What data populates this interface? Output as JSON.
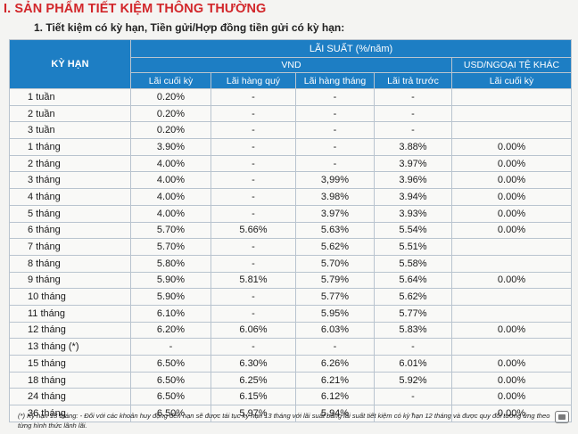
{
  "section_title": "I.  SẢN PHẨM TIẾT KIỆM THÔNG THƯỜNG",
  "sub_title": "1. Tiết kiệm có kỳ hạn, Tiền gửi/Hợp đồng tiền gửi có kỳ hạn:",
  "header": {
    "term": "KỲ HẠN",
    "interest_rate": "LÃI SUẤT (%/năm)",
    "vnd": "VND",
    "usd": "USD/NGOẠI TỆ KHÁC",
    "columns": [
      "Lãi cuối kỳ",
      "Lãi hàng quý",
      "Lãi hàng tháng",
      "Lãi trả trước",
      "Lãi cuối kỳ"
    ]
  },
  "rows": [
    [
      "1 tuần",
      "0.20%",
      "-",
      "-",
      "-",
      ""
    ],
    [
      "2 tuần",
      "0.20%",
      "-",
      "-",
      "-",
      ""
    ],
    [
      "3 tuần",
      "0.20%",
      "-",
      "-",
      "-",
      ""
    ],
    [
      "1 tháng",
      "3.90%",
      "-",
      "-",
      "3.88%",
      "0.00%"
    ],
    [
      "2 tháng",
      "4.00%",
      "-",
      "-",
      "3.97%",
      "0.00%"
    ],
    [
      "3 tháng",
      "4.00%",
      "-",
      "3,99%",
      "3.96%",
      "0.00%"
    ],
    [
      "4 tháng",
      "4.00%",
      "-",
      "3.98%",
      "3.94%",
      "0.00%"
    ],
    [
      "5 tháng",
      "4.00%",
      "-",
      "3.97%",
      "3.93%",
      "0.00%"
    ],
    [
      "6 tháng",
      "5.70%",
      "5.66%",
      "5.63%",
      "5.54%",
      "0.00%"
    ],
    [
      "7 tháng",
      "5.70%",
      "-",
      "5.62%",
      "5.51%",
      ""
    ],
    [
      "8 tháng",
      "5.80%",
      "-",
      "5.70%",
      "5.58%",
      ""
    ],
    [
      "9 tháng",
      "5.90%",
      "5.81%",
      "5.79%",
      "5.64%",
      "0.00%"
    ],
    [
      "10 tháng",
      "5.90%",
      "-",
      "5.77%",
      "5.62%",
      ""
    ],
    [
      "11 tháng",
      "6.10%",
      "-",
      "5.95%",
      "5.77%",
      ""
    ],
    [
      "12 tháng",
      "6.20%",
      "6.06%",
      "6.03%",
      "5.83%",
      "0.00%"
    ],
    [
      "13 tháng (*)",
      "-",
      "-",
      "-",
      "-",
      ""
    ],
    [
      "15 tháng",
      "6.50%",
      "6.30%",
      "6.26%",
      "6.01%",
      "0.00%"
    ],
    [
      "18 tháng",
      "6.50%",
      "6.25%",
      "6.21%",
      "5.92%",
      "0.00%"
    ],
    [
      "24 tháng",
      "6.50%",
      "6.15%",
      "6.12%",
      "-",
      "0.00%"
    ],
    [
      "36 tháng",
      "6.50%",
      "5.97%",
      "5.94%",
      "-",
      "0.00%"
    ]
  ],
  "footnote": "(*) Kỳ hạn 13 tháng: - Đối với các khoản huy động đến hạn sẽ được tái tục kỳ hạn 13 tháng với lãi suất bằng lãi suất tiết kiệm có kỳ hạn 12 tháng và được quy đổi tương ứng theo từng hình thức lãnh lãi.",
  "icons": {
    "corner": "screen-capture-icon"
  }
}
